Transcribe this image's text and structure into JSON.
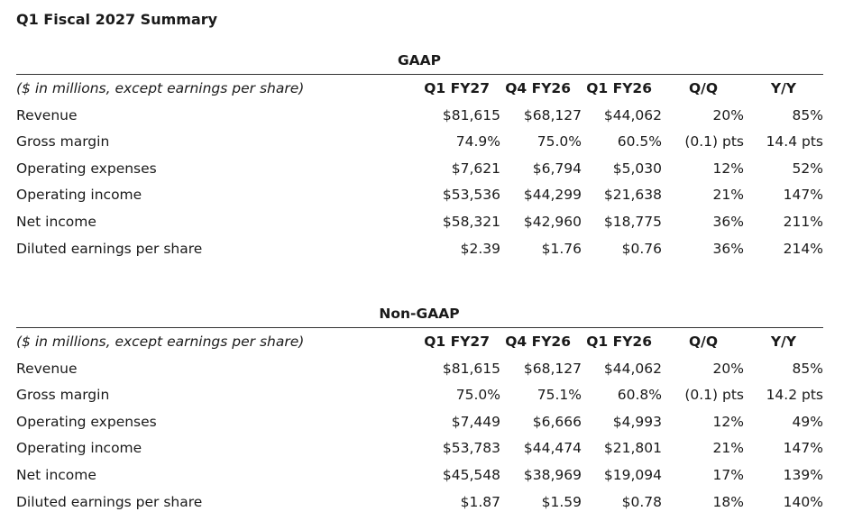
{
  "title": "Q1 Fiscal 2027 Summary",
  "tables": [
    {
      "section": "GAAP",
      "header": [
        "($ in millions, except earnings per share)",
        "Q1 FY27",
        "Q4 FY26",
        "Q1 FY26",
        "Q/Q",
        "Y/Y"
      ],
      "rows": [
        [
          "Revenue",
          "$81,615",
          "$68,127",
          "$44,062",
          "20%",
          "85%"
        ],
        [
          "Gross margin",
          "74.9%",
          "75.0%",
          "60.5%",
          "(0.1) pts",
          "14.4 pts"
        ],
        [
          "Operating expenses",
          "$7,621",
          "$6,794",
          "$5,030",
          "12%",
          "52%"
        ],
        [
          "Operating income",
          "$53,536",
          "$44,299",
          "$21,638",
          "21%",
          "147%"
        ],
        [
          "Net income",
          "$58,321",
          "$42,960",
          "$18,775",
          "36%",
          "211%"
        ],
        [
          "Diluted earnings per share",
          "$2.39",
          "$1.76",
          "$0.76",
          "36%",
          "214%"
        ]
      ]
    },
    {
      "section": "Non-GAAP",
      "header": [
        "($ in millions, except earnings per share)",
        "Q1 FY27",
        "Q4 FY26",
        "Q1 FY26",
        "Q/Q",
        "Y/Y"
      ],
      "rows": [
        [
          "Revenue",
          "$81,615",
          "$68,127",
          "$44,062",
          "20%",
          "85%"
        ],
        [
          "Gross margin",
          "75.0%",
          "75.1%",
          "60.8%",
          "(0.1) pts",
          "14.2 pts"
        ],
        [
          "Operating expenses",
          "$7,449",
          "$6,666",
          "$4,993",
          "12%",
          "49%"
        ],
        [
          "Operating income",
          "$53,783",
          "$44,474",
          "$21,801",
          "21%",
          "147%"
        ],
        [
          "Net income",
          "$45,548",
          "$38,969",
          "$19,094",
          "17%",
          "139%"
        ],
        [
          "Diluted earnings per share",
          "$1.87",
          "$1.59",
          "$0.78",
          "18%",
          "140%"
        ]
      ]
    }
  ]
}
